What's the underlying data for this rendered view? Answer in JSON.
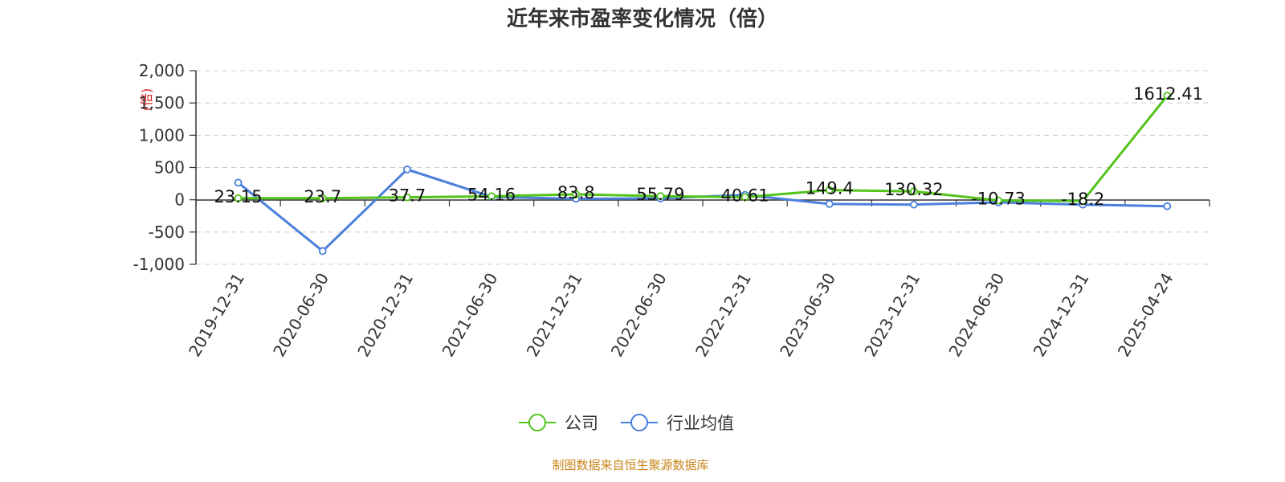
{
  "chart_data": {
    "type": "line",
    "title": "近年来市盈率变化情况（倍）",
    "ylabel": "(倍)",
    "xlabel": "",
    "categories": [
      "2019-12-31",
      "2020-06-30",
      "2020-12-31",
      "2021-06-30",
      "2021-12-31",
      "2022-06-30",
      "2022-12-31",
      "2023-06-30",
      "2023-12-31",
      "2024-06-30",
      "2024-12-31",
      "2025-04-24"
    ],
    "yticks": [
      "2,000",
      "1,500",
      "1,000",
      "500",
      "0",
      "-500",
      "-1,000"
    ],
    "ytick_values": [
      2000,
      1500,
      1000,
      500,
      0,
      -500,
      -1000
    ],
    "ylim": [
      -1000,
      2000
    ],
    "grid": true,
    "legend_position": "bottom",
    "series": [
      {
        "name": "公司",
        "color": "#52c41a",
        "values": [
          23.15,
          23.7,
          37.7,
          54.16,
          83.8,
          55.79,
          40.61,
          149.4,
          130.32,
          -10.73,
          -18.2,
          1612.41
        ],
        "labels": [
          "23.15",
          "23.7",
          "37.7",
          "54.16",
          "83.8",
          "55.79",
          "40.61",
          "149.4",
          "130.32",
          "-10.73",
          "-18.2",
          "1612.41"
        ]
      },
      {
        "name": "行业均值",
        "color": "#4a7fdc",
        "values": [
          265,
          -795,
          470,
          45,
          15,
          22,
          75,
          -65,
          -75,
          -40,
          -75,
          -100
        ]
      }
    ]
  },
  "source": "制图数据来自恒生聚源数据库"
}
